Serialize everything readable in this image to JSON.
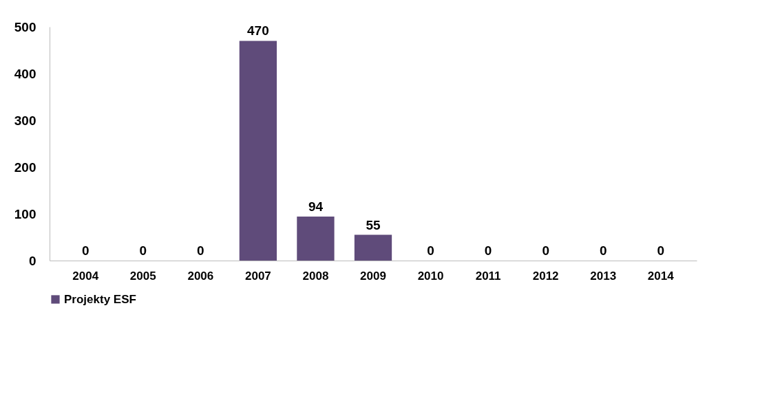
{
  "chart_data": {
    "type": "bar",
    "categories": [
      "2004",
      "2005",
      "2006",
      "2007",
      "2008",
      "2009",
      "2010",
      "2011",
      "2012",
      "2013",
      "2014"
    ],
    "series": [
      {
        "name": "Projekty ESF",
        "color": "#5f4b7a",
        "values": [
          0,
          0,
          0,
          470,
          94,
          55,
          0,
          0,
          0,
          0,
          0
        ]
      }
    ],
    "ylim": [
      0,
      500
    ],
    "yticks": [
      0,
      100,
      200,
      300,
      400,
      500
    ],
    "data_labels": true,
    "grid": false,
    "legend": "bottom"
  }
}
